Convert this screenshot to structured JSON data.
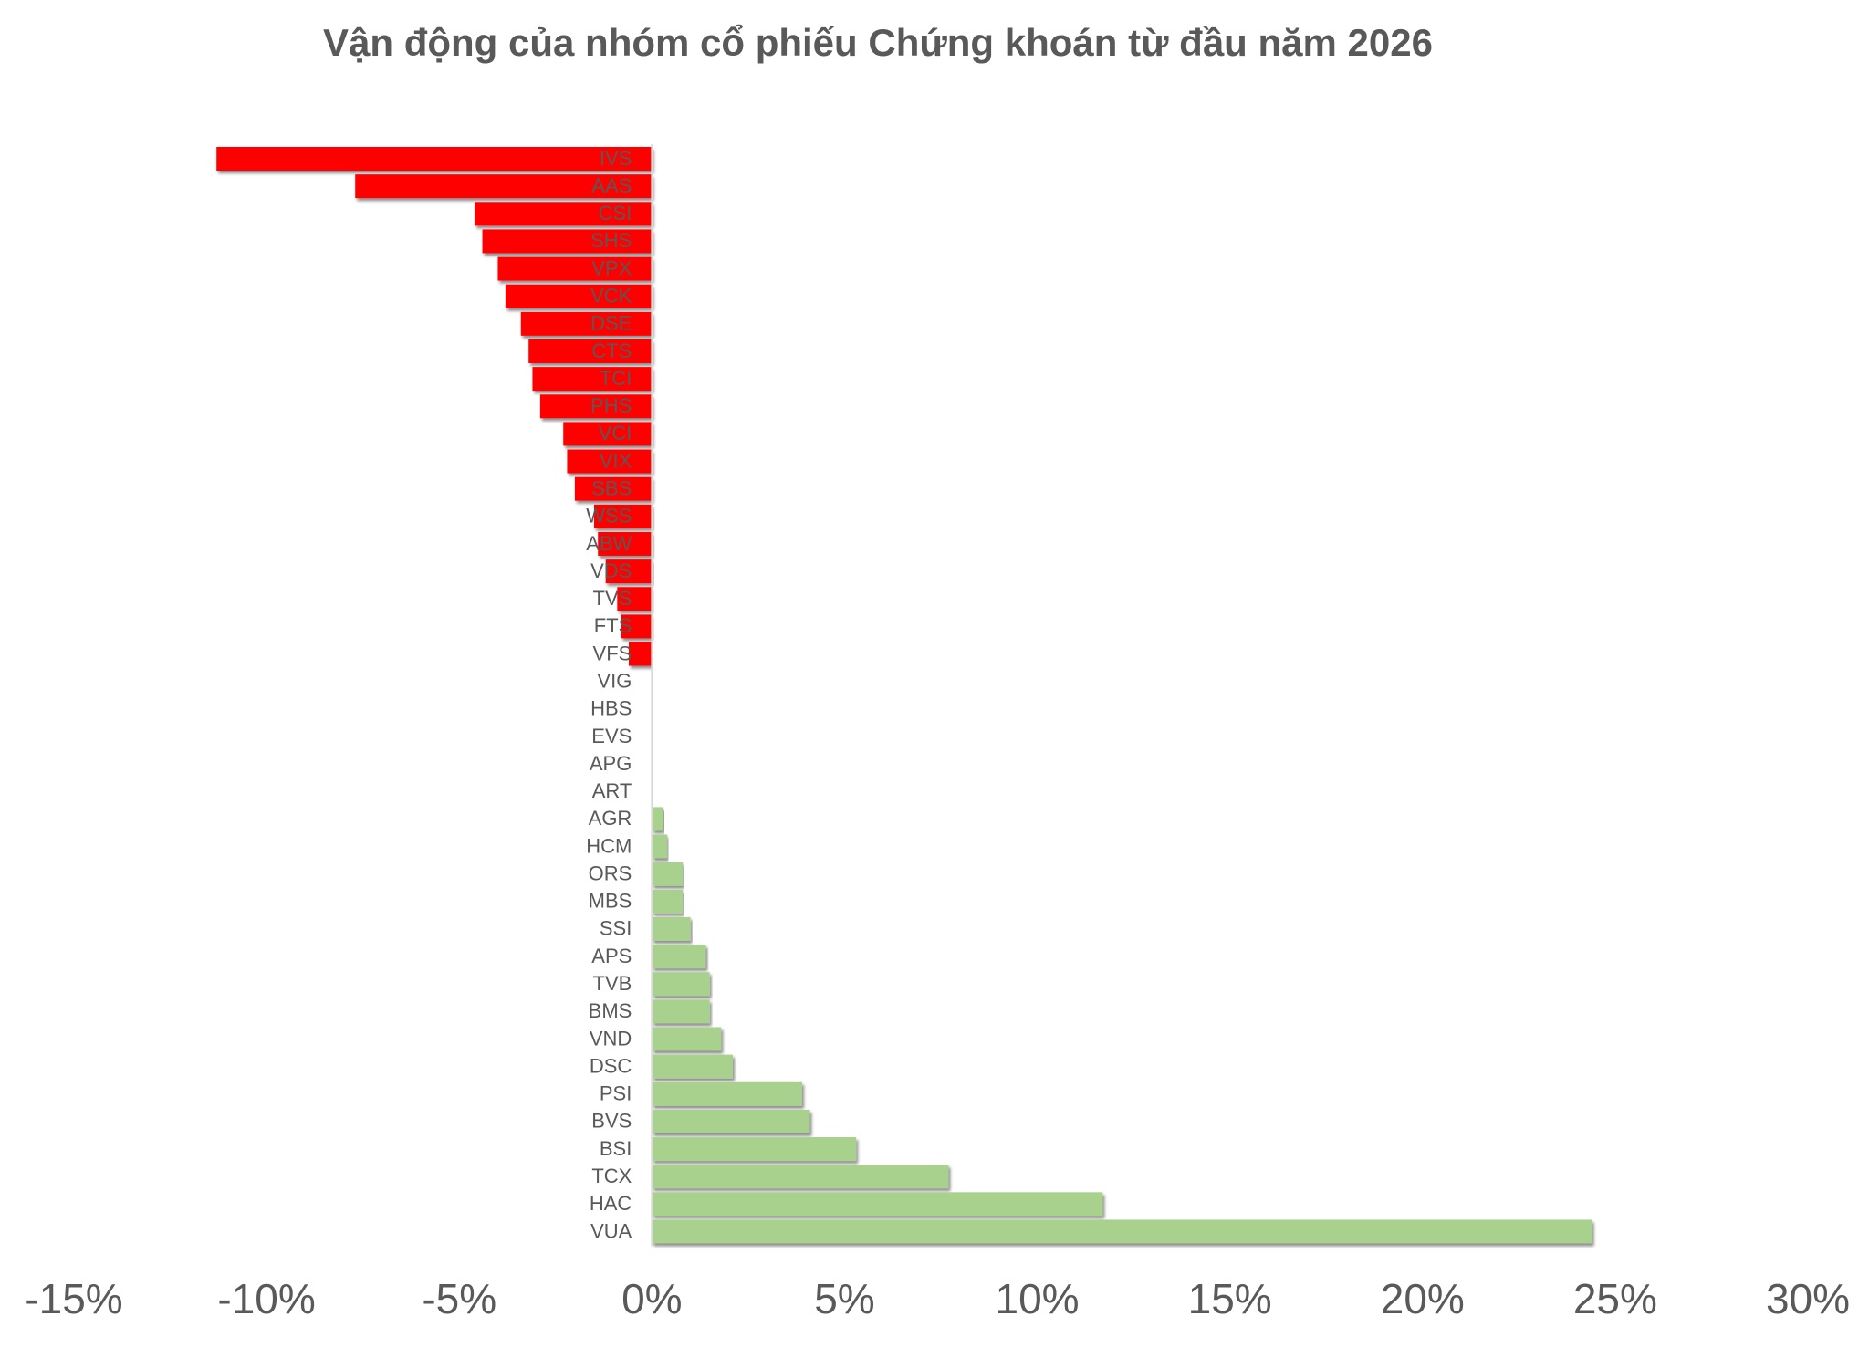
{
  "chart_data": {
    "type": "bar",
    "orientation": "horizontal",
    "title": "Vận động của nhóm cổ phiếu Chứng khoán từ đầu năm 2026",
    "categories": [
      "IVS",
      "AAS",
      "CSI",
      "SHS",
      "VPX",
      "VCK",
      "DSE",
      "CTS",
      "TCI",
      "PHS",
      "VCI",
      "VIX",
      "SBS",
      "WSS",
      "ABW",
      "VDS",
      "TVS",
      "FTS",
      "VFS",
      "VIG",
      "HBS",
      "EVS",
      "APG",
      "ART",
      "AGR",
      "HCM",
      "ORS",
      "MBS",
      "SSI",
      "APS",
      "TVB",
      "BMS",
      "VND",
      "DSC",
      "PSI",
      "BVS",
      "BSI",
      "TCX",
      "HAC",
      "VUA"
    ],
    "values": [
      -11.3,
      -7.7,
      -4.6,
      -4.4,
      -4.0,
      -3.8,
      -3.4,
      -3.2,
      -3.1,
      -2.9,
      -2.3,
      -2.2,
      -2.0,
      -1.5,
      -1.4,
      -1.2,
      -0.9,
      -0.8,
      -0.6,
      0,
      0,
      0,
      0,
      0,
      0.3,
      0.4,
      0.8,
      0.8,
      1.0,
      1.4,
      1.5,
      1.5,
      1.8,
      2.1,
      3.9,
      4.1,
      5.3,
      7.7,
      11.7,
      24.4
    ],
    "negative_color": "#ff0000",
    "positive_color": "#a9d18e",
    "xlim": [
      -15,
      30
    ],
    "xticks": [
      {
        "value": -15,
        "label": "-15%"
      },
      {
        "value": -10,
        "label": "-10%"
      },
      {
        "value": -5,
        "label": "-5%"
      },
      {
        "value": 0,
        "label": "0%"
      },
      {
        "value": 5,
        "label": "5%"
      },
      {
        "value": 10,
        "label": "10%"
      },
      {
        "value": 15,
        "label": "15%"
      },
      {
        "value": 20,
        "label": "20%"
      },
      {
        "value": 25,
        "label": "25%"
      },
      {
        "value": 30,
        "label": "30%"
      }
    ],
    "grid": false
  }
}
